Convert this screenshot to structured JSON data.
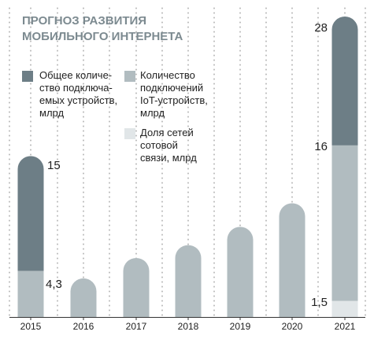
{
  "chart_data": {
    "type": "bar",
    "title": "ПРОГНОЗ РАЗВИТИЯ\nМОБИЛЬНОГО ИНТЕРНЕТА",
    "categories": [
      "2015",
      "2016",
      "2017",
      "2018",
      "2019",
      "2020",
      "2021"
    ],
    "series": [
      {
        "name": "Общее количе-\nство подключа-\nемых устройств,\nмлрд",
        "color": "#6d7e86",
        "values": [
          15,
          null,
          null,
          null,
          null,
          null,
          28
        ]
      },
      {
        "name": "Количество\nподключений\nIoT-устройств,\nмлрд",
        "color": "#b1bcc0",
        "values": [
          4.3,
          3.6,
          5.5,
          6.7,
          8.4,
          10.6,
          16
        ]
      },
      {
        "name": "Доля сетей\nсотовой\nсвязи, млрд",
        "color": "#e1e6e8",
        "values": [
          null,
          null,
          null,
          null,
          null,
          null,
          1.5
        ]
      }
    ],
    "data_labels": [
      {
        "category": "2015",
        "text": "15"
      },
      {
        "category": "2015",
        "text": "4,3"
      },
      {
        "category": "2021",
        "text": "28"
      },
      {
        "category": "2021",
        "text": "16"
      },
      {
        "category": "2021",
        "text": "1,5"
      }
    ],
    "xlabel": "",
    "ylabel": "",
    "ylim": [
      0,
      28
    ],
    "grid": "vertical dotted",
    "legend": "left",
    "colors": {
      "background": "#ffffff",
      "title": "#7c8a90",
      "text": "#222222",
      "grid": "#8a8a8a"
    }
  }
}
